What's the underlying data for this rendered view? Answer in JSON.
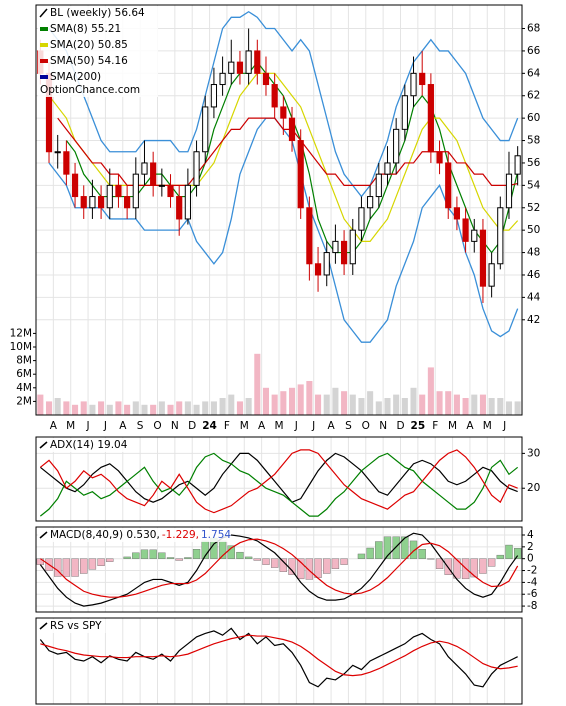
{
  "chart_data": [
    {
      "type": "candlestick",
      "name": "BL (weekly) 56.64",
      "watermark": "OptionChance.com",
      "legend": "top-left",
      "grid": true,
      "up_color": "#000000",
      "down_color": "#cc0000",
      "categories": [
        null,
        null,
        "A",
        null,
        "M",
        null,
        "J",
        null,
        "J",
        null,
        "A",
        null,
        "S",
        null,
        "O",
        null,
        "N",
        null,
        "D",
        null,
        "24",
        null,
        "F",
        null,
        "M",
        null,
        "A",
        null,
        "M",
        null,
        "J",
        null,
        "J",
        null,
        "A",
        null,
        "S",
        null,
        "O",
        null,
        "N",
        null,
        "D",
        null,
        "25",
        null,
        "F",
        null,
        "M",
        null,
        "A",
        null,
        "M",
        null,
        "J",
        null
      ],
      "open": [
        66,
        64,
        57,
        57,
        55,
        53,
        52,
        53,
        52,
        54,
        53,
        52,
        55,
        56,
        54,
        54,
        53,
        51,
        54,
        57,
        61,
        63,
        64,
        65,
        64,
        66,
        64,
        63,
        61,
        60,
        58,
        52,
        47,
        46,
        48,
        49,
        47,
        50,
        52,
        53,
        55,
        56,
        59,
        62,
        64,
        63,
        57,
        56,
        52,
        51,
        49,
        50,
        45,
        47,
        52,
        55
      ],
      "high": [
        67,
        65,
        58.5,
        58,
        56,
        54,
        54.5,
        54,
        55.5,
        55,
        54,
        56.5,
        58,
        57,
        55.5,
        55,
        54,
        55.5,
        58,
        62,
        64.5,
        65.5,
        67,
        66,
        68,
        67,
        65.5,
        64,
        62,
        61,
        59,
        53,
        48.5,
        49,
        50.5,
        50,
        51,
        53,
        54,
        56,
        57.5,
        60,
        63,
        65.5,
        66,
        64,
        58,
        57,
        53,
        52,
        51,
        51,
        48,
        53,
        57,
        57.5
      ],
      "low": [
        63,
        56,
        55.5,
        54,
        52,
        51,
        51,
        51,
        51,
        52,
        51,
        51,
        54,
        53,
        53,
        52,
        49.5,
        50.5,
        53,
        56,
        60,
        62,
        63,
        63,
        63,
        63,
        62,
        60,
        58.5,
        57,
        51,
        45.5,
        44.5,
        45,
        47,
        46,
        46,
        49,
        51,
        52,
        54,
        55,
        58,
        61,
        62,
        56,
        55,
        51,
        50,
        48,
        48,
        43.5,
        44,
        46.5,
        51,
        54
      ],
      "close": [
        64,
        57,
        57,
        55,
        53,
        52,
        53,
        52,
        54,
        53,
        52,
        55,
        56,
        54,
        54,
        53,
        51,
        54,
        57,
        61,
        63,
        64,
        65,
        64,
        66,
        64,
        63,
        61,
        60,
        58,
        52,
        47,
        46,
        48,
        49,
        47,
        50,
        52,
        53,
        55,
        56,
        59,
        62,
        64,
        63,
        57,
        56,
        52,
        51,
        49,
        50,
        45,
        47,
        52,
        55,
        56.64
      ],
      "ylim": [
        33.5,
        70.1
      ],
      "yticks": [
        42,
        44,
        46,
        48,
        50,
        52,
        54,
        56,
        58,
        60,
        62,
        64,
        66,
        68
      ],
      "lines": [
        {
          "name": "SMA(8) 55.21",
          "color": "#008000",
          "values": [
            null,
            null,
            null,
            58,
            57,
            55,
            54,
            53,
            53,
            53,
            53,
            53,
            54,
            55,
            55,
            54,
            53,
            53,
            54,
            56,
            59,
            61,
            63,
            64,
            64,
            65,
            64,
            63,
            62,
            60,
            58,
            55,
            51,
            49,
            48,
            48,
            48,
            49,
            51,
            52,
            54,
            56,
            58,
            61,
            62,
            61,
            59,
            56,
            54,
            52,
            50,
            49,
            48,
            49,
            52,
            55.21
          ]
        },
        {
          "name": "SMA(20) 50.85",
          "color": "#d6d600",
          "values": [
            null,
            62,
            61,
            60,
            58,
            57,
            56,
            55,
            54,
            54,
            54,
            54,
            54,
            54,
            54,
            54,
            54,
            54,
            54,
            55,
            56,
            58,
            60,
            62,
            63,
            64,
            64,
            64,
            63,
            62,
            61,
            59,
            57,
            55,
            53,
            51,
            50,
            49,
            49,
            50,
            51,
            53,
            55,
            57,
            59,
            60,
            60,
            59,
            58,
            56,
            54,
            52,
            51,
            50,
            50,
            50.85
          ]
        },
        {
          "name": "SMA(50) 54.16",
          "color": "#cc0000",
          "values": [
            null,
            null,
            60,
            59,
            58,
            57,
            56,
            56,
            55,
            55,
            54,
            54,
            54,
            54,
            54,
            54,
            54,
            54,
            55,
            56,
            57,
            58,
            59,
            59,
            60,
            60,
            60,
            60,
            59,
            59,
            58,
            57,
            56,
            55,
            55,
            54,
            54,
            54,
            54,
            55,
            55,
            55,
            56,
            56,
            57,
            57,
            57,
            57,
            56,
            56,
            55,
            55,
            54,
            54,
            54,
            54.16
          ]
        },
        {
          "name": "SMA(200)",
          "color": "#000099"
        }
      ],
      "bands": {
        "color": "#3a8fd8",
        "upper": [
          null,
          68,
          67,
          66,
          64,
          62,
          60,
          58,
          57,
          57,
          57,
          57,
          58,
          58,
          58,
          58,
          57,
          57,
          59,
          62,
          65,
          68,
          69,
          69,
          69.5,
          69,
          68,
          68,
          67,
          66,
          67,
          66,
          63,
          60,
          57,
          55,
          54,
          53,
          54,
          56,
          58,
          61,
          63,
          65,
          66,
          67,
          66,
          66,
          65,
          64,
          62,
          60,
          59,
          58,
          58,
          60
        ],
        "lower": [
          null,
          56,
          55,
          54,
          52,
          52,
          52,
          52,
          51,
          51,
          51,
          51,
          50,
          50,
          50,
          50,
          50,
          51,
          49,
          48,
          47,
          48,
          51,
          55,
          57,
          59,
          60,
          60,
          59,
          58,
          55,
          52,
          50,
          48,
          45,
          42,
          41,
          40,
          40,
          41,
          42,
          45,
          47,
          49,
          52,
          53,
          54,
          52,
          51,
          48,
          46,
          43,
          41,
          40.5,
          41,
          43
        ]
      },
      "volume": {
        "up_color": "#d4d4d4",
        "down_color": "#f2b6c4",
        "ylim": [
          0,
          60300000
        ],
        "yticks": [
          {
            "value": 2000000,
            "label": "2M"
          },
          {
            "value": 4000000,
            "label": "4M"
          },
          {
            "value": 6000000,
            "label": "6M"
          },
          {
            "value": 8000000,
            "label": "8M"
          },
          {
            "value": 10000000,
            "label": "10M"
          },
          {
            "value": 12000000,
            "label": "12M"
          }
        ],
        "values": [
          3000000,
          2000000,
          2500000,
          2000000,
          1500000,
          2000000,
          1500000,
          2000000,
          1500000,
          2000000,
          1500000,
          2000000,
          1500000,
          1500000,
          2000000,
          1500000,
          2000000,
          2000000,
          1500000,
          2000000,
          2000000,
          2500000,
          3000000,
          2000000,
          2500000,
          9000000,
          4000000,
          3000000,
          3500000,
          4000000,
          4500000,
          5000000,
          3000000,
          3000000,
          4000000,
          3500000,
          3000000,
          2500000,
          3500000,
          2000000,
          2500000,
          3000000,
          2500000,
          4000000,
          3000000,
          7000000,
          3500000,
          3500000,
          3000000,
          2500000,
          3000000,
          3000000,
          2500000,
          2500000,
          2000000,
          2000000
        ]
      }
    },
    {
      "type": "line",
      "ylim": [
        10.6,
        34.7
      ],
      "yticks": [
        20,
        30
      ],
      "grid": true,
      "series": [
        {
          "name": "ADX(14) 19.04",
          "color": "#000000",
          "values": [
            26,
            24,
            22,
            20,
            19,
            21,
            24,
            26,
            27,
            25,
            22,
            19,
            17,
            16,
            17,
            19,
            21,
            22,
            20,
            18,
            20,
            24,
            27,
            30,
            30,
            28,
            25,
            22,
            19,
            16,
            17,
            21,
            25,
            28,
            30,
            29,
            27,
            25,
            22,
            19,
            18,
            21,
            24,
            27,
            28,
            27,
            25,
            22,
            21,
            22,
            24,
            26,
            25,
            22,
            20,
            19.04
          ]
        },
        {
          "color": "#008000",
          "values": [
            12,
            14,
            17,
            22,
            20,
            18,
            19,
            17,
            18,
            20,
            22,
            24,
            26,
            22,
            19,
            20,
            18,
            21,
            26,
            29,
            30,
            28,
            27,
            25,
            24,
            22,
            20,
            19,
            18,
            16,
            14,
            12,
            12,
            14,
            17,
            19,
            22,
            25,
            27,
            29,
            30,
            28,
            26,
            25,
            22,
            20,
            18,
            16,
            14,
            14,
            16,
            20,
            26,
            28,
            24,
            26
          ]
        },
        {
          "color": "#dd0000",
          "values": [
            26,
            28,
            25,
            20,
            22,
            25,
            23,
            24,
            22,
            19,
            17,
            16,
            15,
            18,
            22,
            20,
            24,
            20,
            16,
            14,
            13,
            14,
            15,
            17,
            19,
            20,
            22,
            24,
            27,
            30,
            31,
            31,
            30,
            27,
            24,
            21,
            19,
            17,
            16,
            15,
            14,
            16,
            18,
            19,
            22,
            25,
            28,
            30,
            31,
            29,
            26,
            22,
            18,
            16,
            21,
            20
          ]
        }
      ]
    },
    {
      "type": "line",
      "ylim": [
        -9,
        5.35
      ],
      "yticks": [
        -8,
        -6,
        -4,
        -2,
        0,
        2,
        4
      ],
      "grid": true,
      "histogram": {
        "name": "1.754",
        "label_color": "#3355cc",
        "up_color": "#8fd08f",
        "down_color": "#f2b6c4",
        "values": [
          -1,
          -2,
          -3,
          -3,
          -3,
          -2.5,
          -1.8,
          -1.2,
          -0.5,
          0,
          0.3,
          1,
          1.5,
          1.5,
          1,
          0.2,
          -0.3,
          0.2,
          1.6,
          3,
          3.5,
          3,
          2.2,
          1.1,
          0.3,
          -0.3,
          -1,
          -1.5,
          -2.2,
          -2.7,
          -3.4,
          -3.5,
          -3.2,
          -2.5,
          -1.7,
          -1,
          0,
          0.8,
          1.8,
          2.9,
          3.7,
          3.7,
          3.7,
          3,
          1.6,
          -0.1,
          -1.7,
          -2.7,
          -3.3,
          -3.4,
          -3.1,
          -2.5,
          -1.3,
          0.6,
          2.3,
          1.754
        ]
      },
      "series": [
        {
          "name": "MACD(8,40,9) 0.530,",
          "color": "#000000",
          "values": [
            -1,
            -3,
            -5,
            -6.5,
            -7.5,
            -8,
            -7.8,
            -7.5,
            -7,
            -6.5,
            -6,
            -5,
            -4,
            -3.5,
            -3.5,
            -4,
            -4.5,
            -4,
            -2,
            0.5,
            2.5,
            3.5,
            4,
            3.8,
            3.5,
            3,
            2,
            1,
            -0.5,
            -2,
            -4,
            -5.5,
            -6.5,
            -7,
            -7,
            -6.8,
            -6,
            -5,
            -3.5,
            -1.5,
            0.5,
            2,
            3.5,
            4.3,
            4,
            2.5,
            0.5,
            -1.5,
            -3.5,
            -5,
            -6,
            -6.5,
            -6,
            -4,
            -1.5,
            0.53
          ]
        },
        {
          "name": "-1.229,",
          "color": "#dd0000",
          "values": [
            0,
            -1,
            -2,
            -3.5,
            -4.5,
            -5.5,
            -6,
            -6.3,
            -6.5,
            -6.5,
            -6.3,
            -6,
            -5.5,
            -5,
            -4.5,
            -4.2,
            -4.2,
            -4.2,
            -3.6,
            -2.5,
            -1,
            0.5,
            1.8,
            2.7,
            3.2,
            3.3,
            3,
            2.5,
            1.7,
            0.7,
            -0.6,
            -2,
            -3.3,
            -4.5,
            -5.3,
            -5.8,
            -6,
            -5.8,
            -5.3,
            -4.4,
            -3.2,
            -1.7,
            -0.2,
            1.3,
            2.4,
            2.6,
            2.2,
            1.2,
            -0.2,
            -1.6,
            -2.9,
            -4,
            -4.7,
            -4.6,
            -3.8,
            -1.229
          ]
        }
      ]
    },
    {
      "type": "line",
      "ylim": [
        0,
        100
      ],
      "series": [
        {
          "name": "RS vs SPY",
          "color": "#000000",
          "values": [
            75,
            62,
            58,
            60,
            52,
            50,
            55,
            48,
            56,
            52,
            50,
            60,
            55,
            52,
            58,
            50,
            62,
            70,
            78,
            82,
            85,
            80,
            88,
            75,
            82,
            70,
            78,
            68,
            70,
            60,
            45,
            25,
            20,
            30,
            28,
            35,
            45,
            40,
            50,
            55,
            60,
            65,
            70,
            78,
            82,
            75,
            70,
            55,
            45,
            35,
            22,
            20,
            35,
            45,
            50,
            55
          ]
        },
        {
          "color": "#dd0000",
          "values": [
            70,
            67,
            64,
            62,
            59,
            57,
            56,
            55,
            55,
            54,
            54,
            55,
            55,
            55,
            56,
            55,
            56,
            58,
            62,
            66,
            70,
            73,
            76,
            78,
            80,
            79,
            79,
            77,
            75,
            72,
            67,
            60,
            52,
            45,
            38,
            34,
            33,
            34,
            37,
            41,
            46,
            51,
            56,
            62,
            67,
            71,
            73,
            71,
            67,
            61,
            54,
            47,
            43,
            41,
            42,
            44
          ]
        }
      ]
    }
  ]
}
